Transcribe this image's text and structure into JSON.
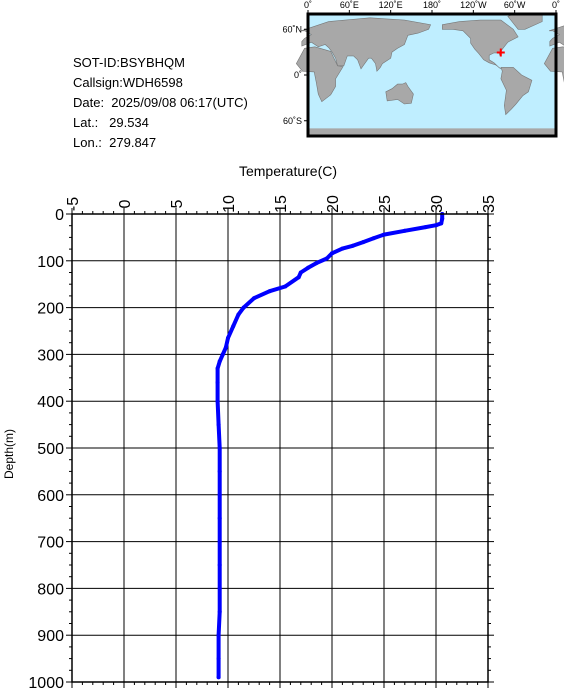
{
  "header": {
    "sot_id": "SOT-ID:BSYBHQM",
    "callsign": "Callsign:WDH6598",
    "date": "Date:  2025/09/08 06:17(UTC)",
    "lat": "Lat.:   29.534",
    "lon": "Lon.:  279.847"
  },
  "map": {
    "lon_labels": [
      "0˚",
      "60˚E",
      "120˚E",
      "180˚",
      "120˚W",
      "60˚W",
      "0˚"
    ],
    "lat_labels": [
      "60˚N",
      "0˚",
      "60˚S"
    ],
    "ocean_color": "#bfeeff",
    "land_color": "#a8a8a8",
    "marker_color": "#ff0000",
    "marker_lat": 29.534,
    "marker_lon": 279.847
  },
  "chart_data": {
    "type": "line",
    "xlabel": "Temperature(C)",
    "ylabel": "Depth(m)",
    "xlim": [
      -5,
      35
    ],
    "ylim": [
      0,
      1000
    ],
    "y_inverted": true,
    "x_axis_position": "top",
    "x_ticks": [
      -5,
      0,
      5,
      10,
      15,
      20,
      25,
      30,
      35
    ],
    "y_ticks": [
      0,
      100,
      200,
      300,
      400,
      500,
      600,
      700,
      800,
      900,
      1000
    ],
    "grid": true,
    "series": [
      {
        "color": "#0000ff",
        "points": [
          [
            30.6,
            0
          ],
          [
            30.6,
            10
          ],
          [
            30.5,
            20
          ],
          [
            30.0,
            24
          ],
          [
            29.0,
            28
          ],
          [
            27.0,
            36
          ],
          [
            25.0,
            44
          ],
          [
            24.0,
            52
          ],
          [
            23.0,
            60
          ],
          [
            22.0,
            68
          ],
          [
            21.0,
            74
          ],
          [
            20.0,
            84
          ],
          [
            19.5,
            95
          ],
          [
            18.5,
            105
          ],
          [
            17.7,
            115
          ],
          [
            17.0,
            125
          ],
          [
            16.8,
            135
          ],
          [
            15.5,
            155
          ],
          [
            14.0,
            165
          ],
          [
            12.5,
            180
          ],
          [
            11.5,
            200
          ],
          [
            11.0,
            215
          ],
          [
            10.5,
            240
          ],
          [
            10.0,
            265
          ],
          [
            9.8,
            285
          ],
          [
            9.5,
            300
          ],
          [
            9.2,
            315
          ],
          [
            9.0,
            330
          ],
          [
            9.0,
            360
          ],
          [
            9.0,
            400
          ],
          [
            9.1,
            450
          ],
          [
            9.2,
            500
          ],
          [
            9.2,
            550
          ],
          [
            9.2,
            600
          ],
          [
            9.2,
            650
          ],
          [
            9.2,
            700
          ],
          [
            9.2,
            750
          ],
          [
            9.2,
            800
          ],
          [
            9.2,
            850
          ],
          [
            9.1,
            900
          ],
          [
            9.1,
            950
          ],
          [
            9.1,
            990
          ]
        ]
      }
    ]
  }
}
